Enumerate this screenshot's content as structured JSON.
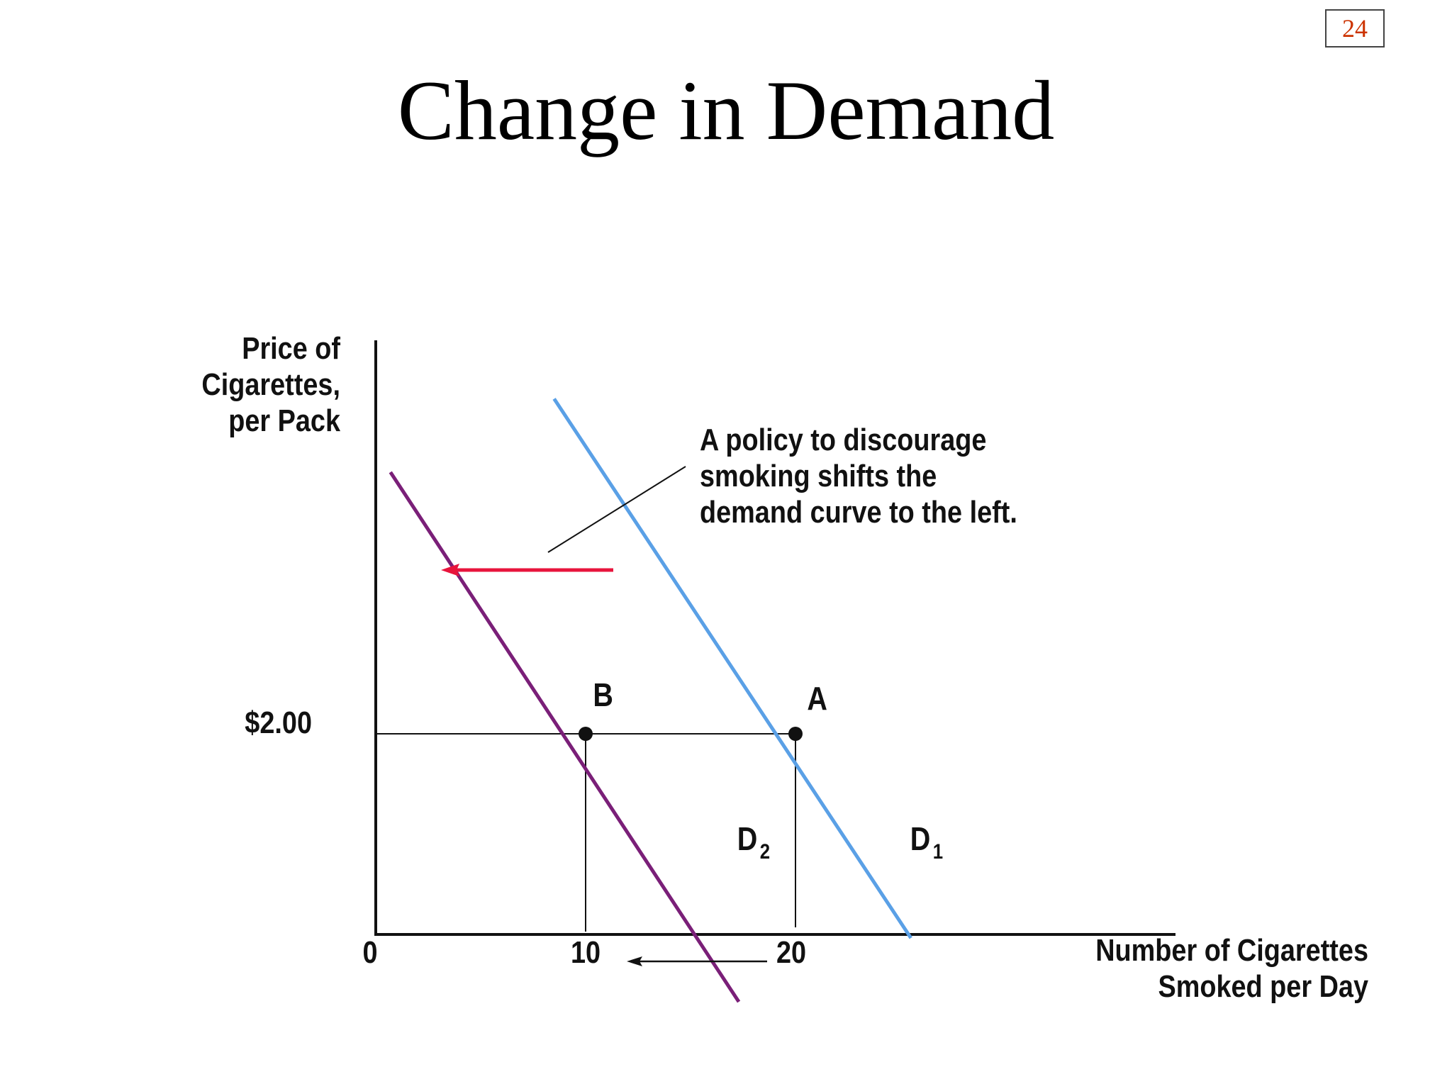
{
  "slide": {
    "page_number": "24",
    "title": "Change in Demand"
  },
  "chart_data": {
    "type": "line",
    "ylabel_lines": [
      "Price of",
      "Cigarettes,",
      "per Pack"
    ],
    "xlabel_lines": [
      "Number of Cigarettes",
      "Smoked per Day"
    ],
    "x_ticks": [
      "0",
      "10",
      "20"
    ],
    "y_ticks": [
      "$2.00"
    ],
    "xlim": [
      0,
      38
    ],
    "price_level": 2.0,
    "annotation_lines": [
      "A policy to discourage",
      "smoking shifts the",
      "demand curve to the left."
    ],
    "series": [
      {
        "name": "D",
        "subscript": "1",
        "color": "#5aa0e6",
        "x": [
          8.5,
          25.5
        ],
        "y": [
          3.05,
          1.36
        ]
      },
      {
        "name": "D",
        "subscript": "2",
        "color": "#7a1f78",
        "x": [
          0.7,
          17.3
        ],
        "y": [
          2.82,
          1.16
        ]
      }
    ],
    "points": [
      {
        "label": "A",
        "x": 20,
        "y": 2.0
      },
      {
        "label": "B",
        "x": 10,
        "y": 2.0
      }
    ],
    "shift_arrow_color": "#e8143c",
    "quantity_arrow": {
      "from": "20",
      "to": "10"
    }
  }
}
